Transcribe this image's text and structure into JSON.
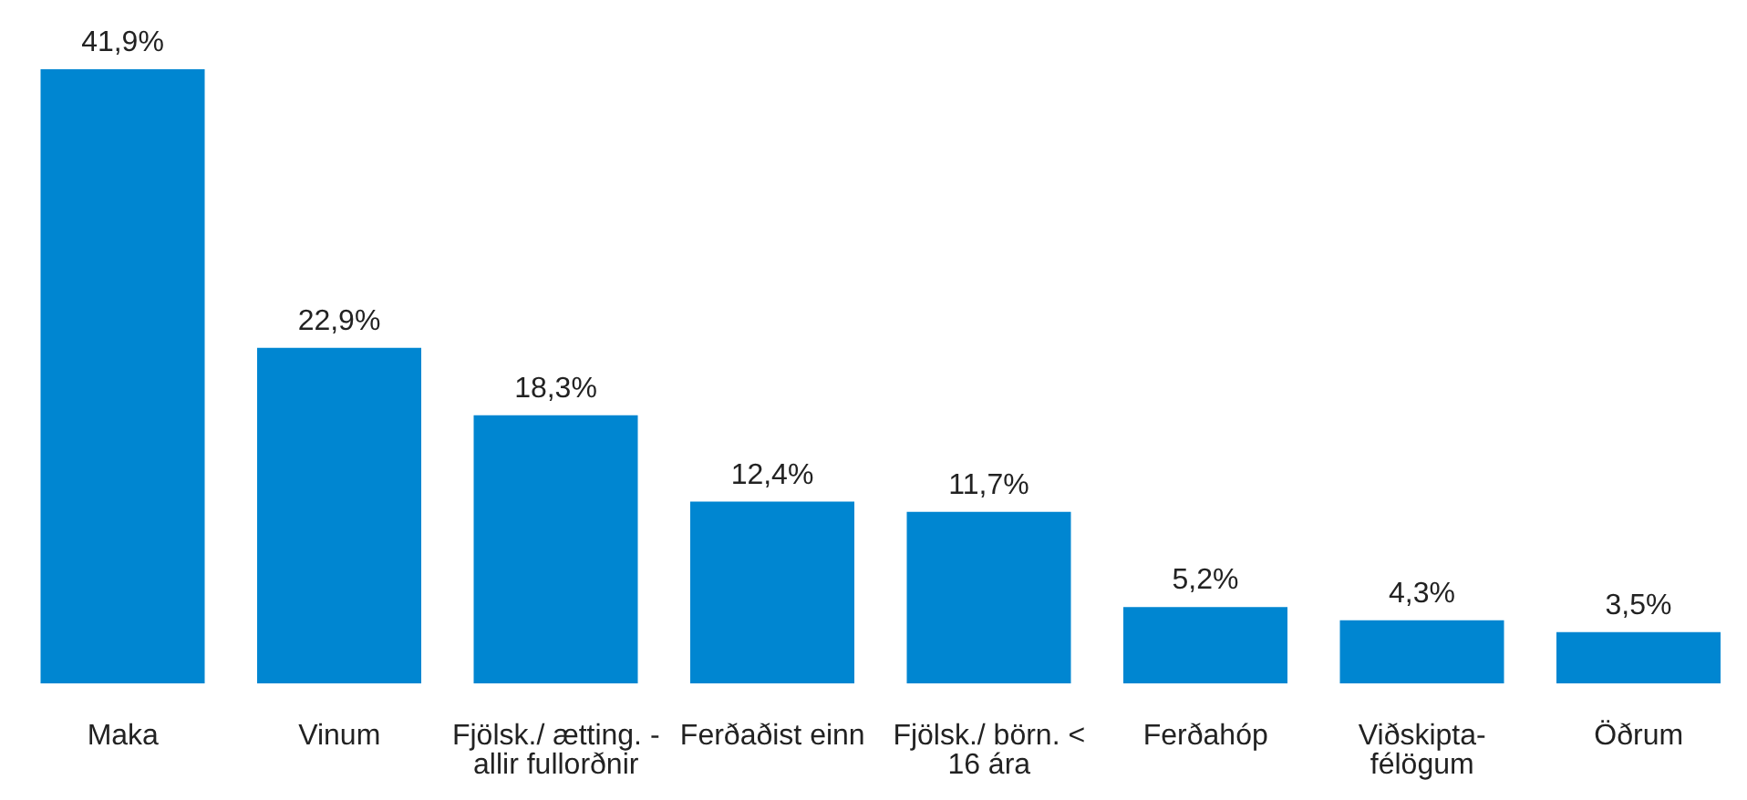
{
  "chart_data": {
    "type": "bar",
    "categories": [
      "Maka",
      "Vinum",
      "Fjölsk./ ætting. - allir fullorðnir",
      "Ferðaðist einn",
      "Fjölsk./ börn. < 16 ára",
      "Ferðahóp",
      "Viðskipta- félögum",
      "Öðrum"
    ],
    "values": [
      41.9,
      22.9,
      18.3,
      12.4,
      11.7,
      5.2,
      4.3,
      3.5
    ],
    "value_labels": [
      "41,9%",
      "22,9%",
      "18,3%",
      "12,4%",
      "11,7%",
      "5,2%",
      "4,3%",
      "3,5%"
    ],
    "color": "#0086d1",
    "grid": false,
    "legend": false
  }
}
